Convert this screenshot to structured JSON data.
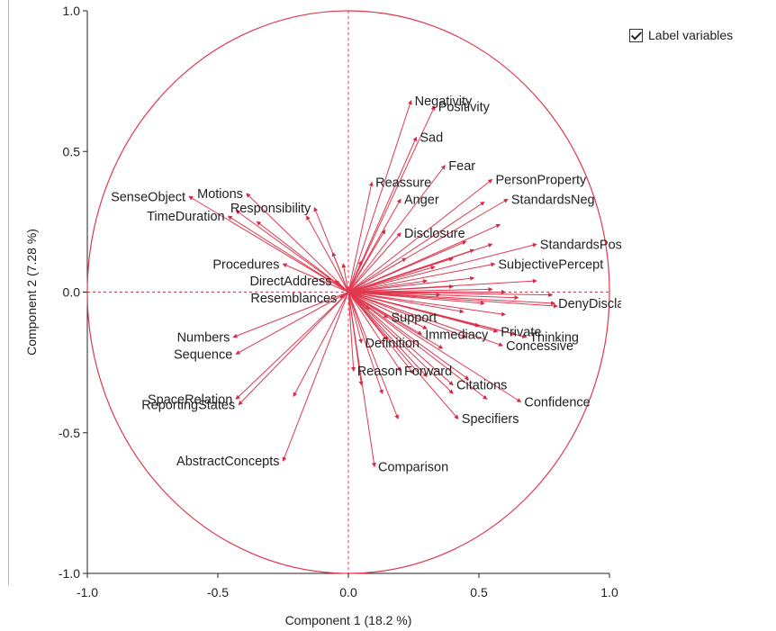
{
  "controls": {
    "label_variables": "Label variables",
    "label_variables_checked": true
  },
  "colors": {
    "accent": "#e0384f",
    "circle": "#e0384f",
    "axes": "#222222"
  },
  "chart_data": {
    "type": "scatter",
    "subtype": "pca-loading-plot",
    "xlabel": "Component 1  (18.2 %)",
    "ylabel": "Component 2  (7.28 %)",
    "xlim": [
      -1.0,
      1.0
    ],
    "ylim": [
      -1.0,
      1.0
    ],
    "xticks": [
      "-1.0",
      "-0.5",
      "0.0",
      "0.5",
      "1.0"
    ],
    "yticks": [
      "1.0",
      "0.5",
      "0.0",
      "-0.5",
      "-1.0"
    ],
    "reference_lines": {
      "x": 0,
      "y": 0
    },
    "unit_circle": true,
    "labeled_variables": [
      {
        "name": "Negativity",
        "x": 0.24,
        "y": 0.68
      },
      {
        "name": "Positivity",
        "x": 0.33,
        "y": 0.66
      },
      {
        "name": "Sad",
        "x": 0.26,
        "y": 0.55
      },
      {
        "name": "Fear",
        "x": 0.37,
        "y": 0.45
      },
      {
        "name": "PersonProperty",
        "x": 0.55,
        "y": 0.4
      },
      {
        "name": "Reassure",
        "x": 0.09,
        "y": 0.39
      },
      {
        "name": "Anger",
        "x": 0.2,
        "y": 0.33
      },
      {
        "name": "StandardsNeg",
        "x": 0.61,
        "y": 0.33
      },
      {
        "name": "Responsibility",
        "x": -0.13,
        "y": 0.3
      },
      {
        "name": "Disclosure",
        "x": 0.2,
        "y": 0.21
      },
      {
        "name": "StandardsPos",
        "x": 0.72,
        "y": 0.17
      },
      {
        "name": "SubjectivePercept",
        "x": 0.56,
        "y": 0.1
      },
      {
        "name": "SenseObject",
        "x": -0.61,
        "y": 0.34
      },
      {
        "name": "Motions",
        "x": -0.39,
        "y": 0.35
      },
      {
        "name": "TimeDuration",
        "x": -0.46,
        "y": 0.27
      },
      {
        "name": "Procedures",
        "x": -0.25,
        "y": 0.1
      },
      {
        "name": "DirectAddress",
        "x": -0.05,
        "y": 0.04
      },
      {
        "name": "Resemblances",
        "x": -0.03,
        "y": -0.02
      },
      {
        "name": "DenyDisclaim",
        "x": 0.79,
        "y": -0.04
      },
      {
        "name": "Thinking",
        "x": 0.68,
        "y": -0.16
      },
      {
        "name": "Private",
        "x": 0.57,
        "y": -0.14
      },
      {
        "name": "Concessive",
        "x": 0.59,
        "y": -0.19
      },
      {
        "name": "Support",
        "x": 0.15,
        "y": -0.09
      },
      {
        "name": "Immediacy",
        "x": 0.28,
        "y": -0.15
      },
      {
        "name": "Definition",
        "x": 0.05,
        "y": -0.18
      },
      {
        "name": "Numbers",
        "x": -0.44,
        "y": -0.16
      },
      {
        "name": "Sequence",
        "x": -0.43,
        "y": -0.22
      },
      {
        "name": "Reason",
        "x": 0.02,
        "y": -0.28
      },
      {
        "name": "Forward",
        "x": 0.2,
        "y": -0.28
      },
      {
        "name": "Citations",
        "x": 0.4,
        "y": -0.33
      },
      {
        "name": "ReportingStates",
        "x": -0.42,
        "y": -0.4
      },
      {
        "name": "Confidence",
        "x": 0.66,
        "y": -0.39
      },
      {
        "name": "SpaceRelation",
        "x": -0.43,
        "y": -0.38
      },
      {
        "name": "Specifiers",
        "x": 0.42,
        "y": -0.45
      },
      {
        "name": "AbstractConcepts",
        "x": -0.25,
        "y": -0.6
      },
      {
        "name": "Comparison",
        "x": 0.1,
        "y": -0.62
      }
    ],
    "unlabeled_variables": [
      {
        "x": 0.8,
        "y": -0.05
      },
      {
        "x": 0.78,
        "y": -0.01
      },
      {
        "x": 0.72,
        "y": 0.04
      },
      {
        "x": 0.65,
        "y": -0.02
      },
      {
        "x": 0.6,
        "y": 0.0
      },
      {
        "x": 0.55,
        "y": 0.01
      },
      {
        "x": 0.52,
        "y": -0.04
      },
      {
        "x": 0.48,
        "y": 0.05
      },
      {
        "x": 0.44,
        "y": -0.07
      },
      {
        "x": 0.4,
        "y": 0.02
      },
      {
        "x": 0.35,
        "y": -0.01
      },
      {
        "x": 0.3,
        "y": 0.04
      },
      {
        "x": 0.45,
        "y": 0.18
      },
      {
        "x": 0.48,
        "y": 0.15
      },
      {
        "x": 0.52,
        "y": 0.32
      },
      {
        "x": 0.58,
        "y": 0.24
      },
      {
        "x": 0.55,
        "y": 0.17
      },
      {
        "x": 0.4,
        "y": 0.12
      },
      {
        "x": 0.33,
        "y": 0.09
      },
      {
        "x": 0.22,
        "y": 0.12
      },
      {
        "x": 0.14,
        "y": 0.22
      },
      {
        "x": 0.05,
        "y": 0.11
      },
      {
        "x": -0.02,
        "y": 0.1
      },
      {
        "x": -0.06,
        "y": 0.14
      },
      {
        "x": -0.16,
        "y": 0.27
      },
      {
        "x": -0.35,
        "y": 0.25
      },
      {
        "x": -0.43,
        "y": 0.29
      },
      {
        "x": 0.6,
        "y": -0.08
      },
      {
        "x": 0.64,
        "y": -0.15
      },
      {
        "x": 0.5,
        "y": -0.12
      },
      {
        "x": 0.45,
        "y": -0.16
      },
      {
        "x": 0.36,
        "y": -0.2
      },
      {
        "x": 0.3,
        "y": -0.13
      },
      {
        "x": 0.25,
        "y": -0.29
      },
      {
        "x": 0.15,
        "y": -0.17
      },
      {
        "x": 0.08,
        "y": -0.06
      },
      {
        "x": 0.53,
        "y": -0.38
      },
      {
        "x": 0.46,
        "y": -0.31
      },
      {
        "x": 0.4,
        "y": -0.36
      },
      {
        "x": 0.3,
        "y": -0.3
      },
      {
        "x": 0.05,
        "y": -0.33
      },
      {
        "x": 0.13,
        "y": -0.36
      },
      {
        "x": -0.21,
        "y": -0.37
      },
      {
        "x": 0.19,
        "y": -0.45
      }
    ]
  }
}
